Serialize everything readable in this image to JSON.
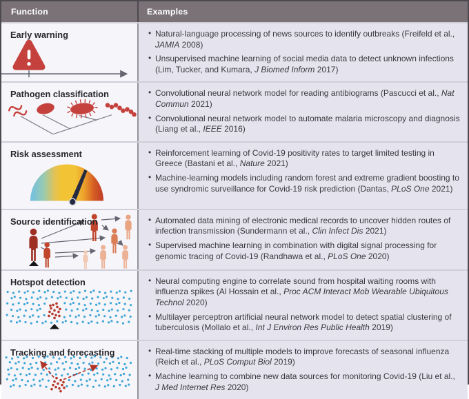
{
  "header": {
    "function_label": "Function",
    "examples_label": "Examples"
  },
  "colors": {
    "header_bg": "#7b7277",
    "examples_bg": "#e5e4ee",
    "function_bg": "#f6f5f9",
    "alert_red": "#c5413d",
    "gauge_blue": "#72bfe3",
    "gauge_yellow": "#f1c335",
    "gauge_red": "#bf3b28",
    "dot_blue": "#3ea6d8",
    "dot_red": "#b5392b",
    "person_dark_red": "#9e2f23",
    "person_light": "#ecb296"
  },
  "icons": [
    "warning-triangle-timeline-icon",
    "pathogen-phylogeny-icon",
    "risk-gauge-icon",
    "transmission-tree-icon",
    "hotspot-dot-map-icon",
    "forecast-dot-map-icon"
  ],
  "rows": [
    {
      "function": "Early warning",
      "examples": [
        {
          "pre": "Natural-language processing of news sources to identify outbreaks (Freifeld et al., ",
          "journal": "JAMIA",
          "post": " 2008)"
        },
        {
          "pre": "Unsupervised machine learning of social media data to detect unknown infections (Lim, Tucker, and Kumara, ",
          "journal": "J Biomed Inform",
          "post": " 2017)"
        }
      ]
    },
    {
      "function": "Pathogen classification",
      "examples": [
        {
          "pre": "Convolutional neural network model for reading antibiograms (Pascucci et al., ",
          "journal": "Nat Commun",
          "post": " 2021)"
        },
        {
          "pre": "Convolutional neural network model to automate malaria microscopy and diagnosis (Liang et al., ",
          "journal": "IEEE",
          "post": " 2016)"
        }
      ]
    },
    {
      "function": "Risk assessment",
      "examples": [
        {
          "pre": "Reinforcement learning of Covid-19 positivity rates to target limited testing in Greece (Bastani et al., ",
          "journal": "Nature",
          "post": " 2021)"
        },
        {
          "pre": "Machine-learning models including random forest and extreme gradient boosting to use syndromic surveillance for Covid-19 risk prediction (Dantas, ",
          "journal": "PLoS One",
          "post": " 2021)"
        }
      ]
    },
    {
      "function": "Source identification",
      "examples": [
        {
          "pre": "Automated data mining of electronic medical records to uncover hidden routes of infection transmission (Sundermann et al., ",
          "journal": "Clin Infect Dis",
          "post": " 2021)"
        },
        {
          "pre": "Supervised machine learning in combination with digital signal processing for genomic tracing of Covid-19 (Randhawa et al., ",
          "journal": "PLoS One",
          "post": " 2020)"
        }
      ]
    },
    {
      "function": "Hotspot detection",
      "examples": [
        {
          "pre": "Neural computing engine to correlate sound from hospital waiting rooms with influenza spikes (Al Hossain et al., ",
          "journal": "Proc ACM Interact Mob Wearable Ubiquitous Technol",
          "post": " 2020)"
        },
        {
          "pre": "Multilayer perceptron artificial neural network model to detect spatial clustering of tuberculosis (Mollalo et al., ",
          "journal": "Int J Environ Res Public Health",
          "post": " 2019)"
        }
      ]
    },
    {
      "function": "Tracking and forecasting",
      "examples": [
        {
          "pre": "Real-time stacking of multiple models to improve forecasts of seasonal influenza (Reich et al., ",
          "journal": "PLoS Comput Biol",
          "post": " 2019)"
        },
        {
          "pre": "Machine learning to combine new data sources for monitoring Covid-19 (Liu et al., ",
          "journal": "J Med Internet Res",
          "post": " 2020)"
        }
      ]
    }
  ]
}
